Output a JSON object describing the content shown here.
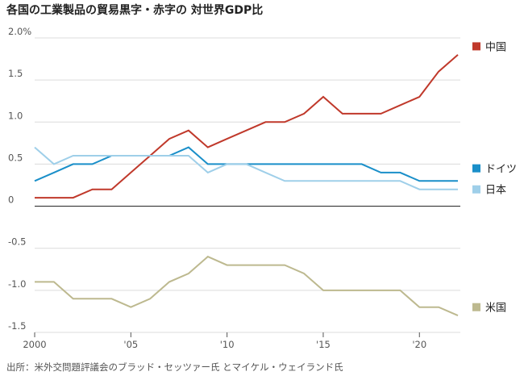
{
  "title": "各国の工業製品の貿易黒字・赤字の 対世界GDP比",
  "source": "出所：米外交問題評議会のブラッド・セッツァー氏 とマイケル・ウェイランド氏",
  "chart_data": {
    "type": "line",
    "title": "各国の工業製品の貿易黒字・赤字の 対世界GDP比",
    "xlabel": "",
    "ylabel": "",
    "xlim": [
      2000,
      2022
    ],
    "ylim": [
      -1.5,
      2.0
    ],
    "grid": true,
    "legend_position": "right",
    "y_ticks": [
      {
        "value": 2.0,
        "label": "2.0%"
      },
      {
        "value": 1.5,
        "label": "1.5"
      },
      {
        "value": 1.0,
        "label": "1.0"
      },
      {
        "value": 0.5,
        "label": "0.5"
      },
      {
        "value": 0,
        "label": "0"
      },
      {
        "value": -0.5,
        "label": "-0.5"
      },
      {
        "value": -1.0,
        "label": "-1.0"
      },
      {
        "value": -1.5,
        "label": "-1.5"
      }
    ],
    "x_ticks": [
      {
        "value": 2000,
        "label": "2000"
      },
      {
        "value": 2005,
        "label": "'05"
      },
      {
        "value": 2010,
        "label": "'10"
      },
      {
        "value": 2015,
        "label": "'15"
      },
      {
        "value": 2020,
        "label": "'20"
      }
    ],
    "x": [
      2000,
      2001,
      2002,
      2003,
      2004,
      2005,
      2006,
      2007,
      2008,
      2009,
      2010,
      2011,
      2012,
      2013,
      2014,
      2015,
      2016,
      2017,
      2018,
      2019,
      2020,
      2021,
      2022
    ],
    "series": [
      {
        "name": "中国",
        "color": "#c0392b",
        "values": [
          0.1,
          0.1,
          0.1,
          0.2,
          0.2,
          0.4,
          0.6,
          0.8,
          0.9,
          0.7,
          0.8,
          0.9,
          1.0,
          1.0,
          1.1,
          1.3,
          1.1,
          1.1,
          1.1,
          1.2,
          1.3,
          1.6,
          1.8
        ]
      },
      {
        "name": "ドイツ",
        "color": "#1a8fc9",
        "values": [
          0.3,
          0.4,
          0.5,
          0.5,
          0.6,
          0.6,
          0.6,
          0.6,
          0.7,
          0.5,
          0.5,
          0.5,
          0.5,
          0.5,
          0.5,
          0.5,
          0.5,
          0.5,
          0.4,
          0.4,
          0.3,
          0.3,
          0.3
        ]
      },
      {
        "name": "日本",
        "color": "#9fcfe9",
        "values": [
          0.7,
          0.5,
          0.6,
          0.6,
          0.6,
          0.6,
          0.6,
          0.6,
          0.6,
          0.4,
          0.5,
          0.5,
          0.4,
          0.3,
          0.3,
          0.3,
          0.3,
          0.3,
          0.3,
          0.3,
          0.2,
          0.2,
          0.2
        ]
      },
      {
        "name": "米国",
        "color": "#bdb98f",
        "values": [
          -0.9,
          -0.9,
          -1.1,
          -1.1,
          -1.1,
          -1.2,
          -1.1,
          -0.9,
          -0.8,
          -0.6,
          -0.7,
          -0.7,
          -0.7,
          -0.7,
          -0.8,
          -1.0,
          -1.0,
          -1.0,
          -1.0,
          -1.0,
          -1.2,
          -1.2,
          -1.3
        ]
      }
    ]
  }
}
